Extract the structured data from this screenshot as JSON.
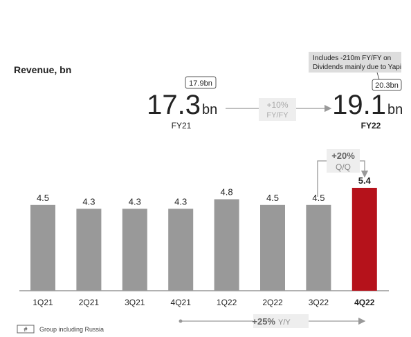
{
  "chart_data": {
    "type": "bar",
    "title": "Revenue, bn",
    "categories": [
      "1Q21",
      "2Q21",
      "3Q21",
      "4Q21",
      "1Q22",
      "2Q22",
      "3Q22",
      "4Q22"
    ],
    "values": [
      4.5,
      4.3,
      4.3,
      4.3,
      4.8,
      4.5,
      4.5,
      5.4
    ],
    "colors": [
      "#999999",
      "#999999",
      "#999999",
      "#999999",
      "#999999",
      "#999999",
      "#999999",
      "#b5121b"
    ],
    "annotations": {
      "fy21": {
        "value": 17.3,
        "unit": "bn",
        "label": "FY21",
        "callout": "17.9bn"
      },
      "growth_fy": {
        "value": "+10%",
        "label": "FY/FY"
      },
      "fy22": {
        "value": 19.1,
        "unit": "bn",
        "label": "FY22",
        "callout": "20.3bn",
        "note": [
          "Includes -210m FY/FY on",
          "Dividends mainly due to Yapi"
        ]
      },
      "growth_qq": {
        "value": "+20%",
        "label": "Q/Q"
      },
      "growth_yy": {
        "value": "+25%",
        "label": "Y/Y"
      }
    },
    "legend": {
      "symbol": "#",
      "label": "Group including Russia"
    }
  }
}
